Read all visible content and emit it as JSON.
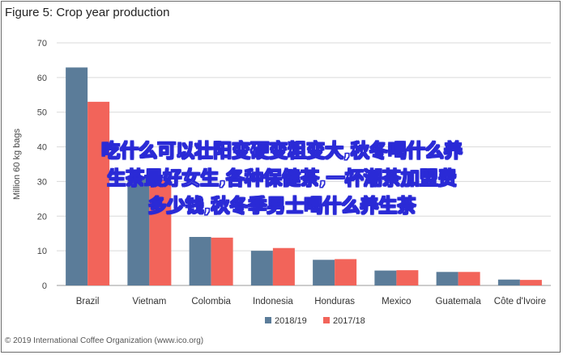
{
  "chart_data": {
    "type": "bar",
    "title": "Figure 5: Crop year production",
    "ylabel": "Million 60 kg bags",
    "xlabel": "",
    "ylim": [
      0,
      70
    ],
    "yticks": [
      0,
      10,
      20,
      30,
      40,
      50,
      60,
      70
    ],
    "grid": true,
    "legend_position": "bottom",
    "categories": [
      "Brazil",
      "Vietnam",
      "Colombia",
      "Indonesia",
      "Honduras",
      "Mexico",
      "Guatemala",
      "Côte d'Ivoire"
    ],
    "series": [
      {
        "name": "2018/19",
        "color": "#5b7c99",
        "values": [
          62.9,
          31,
          14.0,
          10.0,
          7.4,
          4.3,
          3.9,
          1.7
        ]
      },
      {
        "name": "2017/18",
        "color": "#f2645a",
        "values": [
          53.0,
          30.5,
          13.8,
          10.8,
          7.6,
          4.4,
          3.9,
          1.6
        ]
      }
    ],
    "source": "© 2019 International Coffee Organization (www.ico.org)"
  },
  "overlay": {
    "line1": "吃什么可以壮阳变硬变粗变大,秋冬喝什么养",
    "line2": "生茶最好女生,各种保健茶,一杯潮茶加盟费",
    "line3": "多少钱,秋冬季男士喝什么养生茶"
  }
}
